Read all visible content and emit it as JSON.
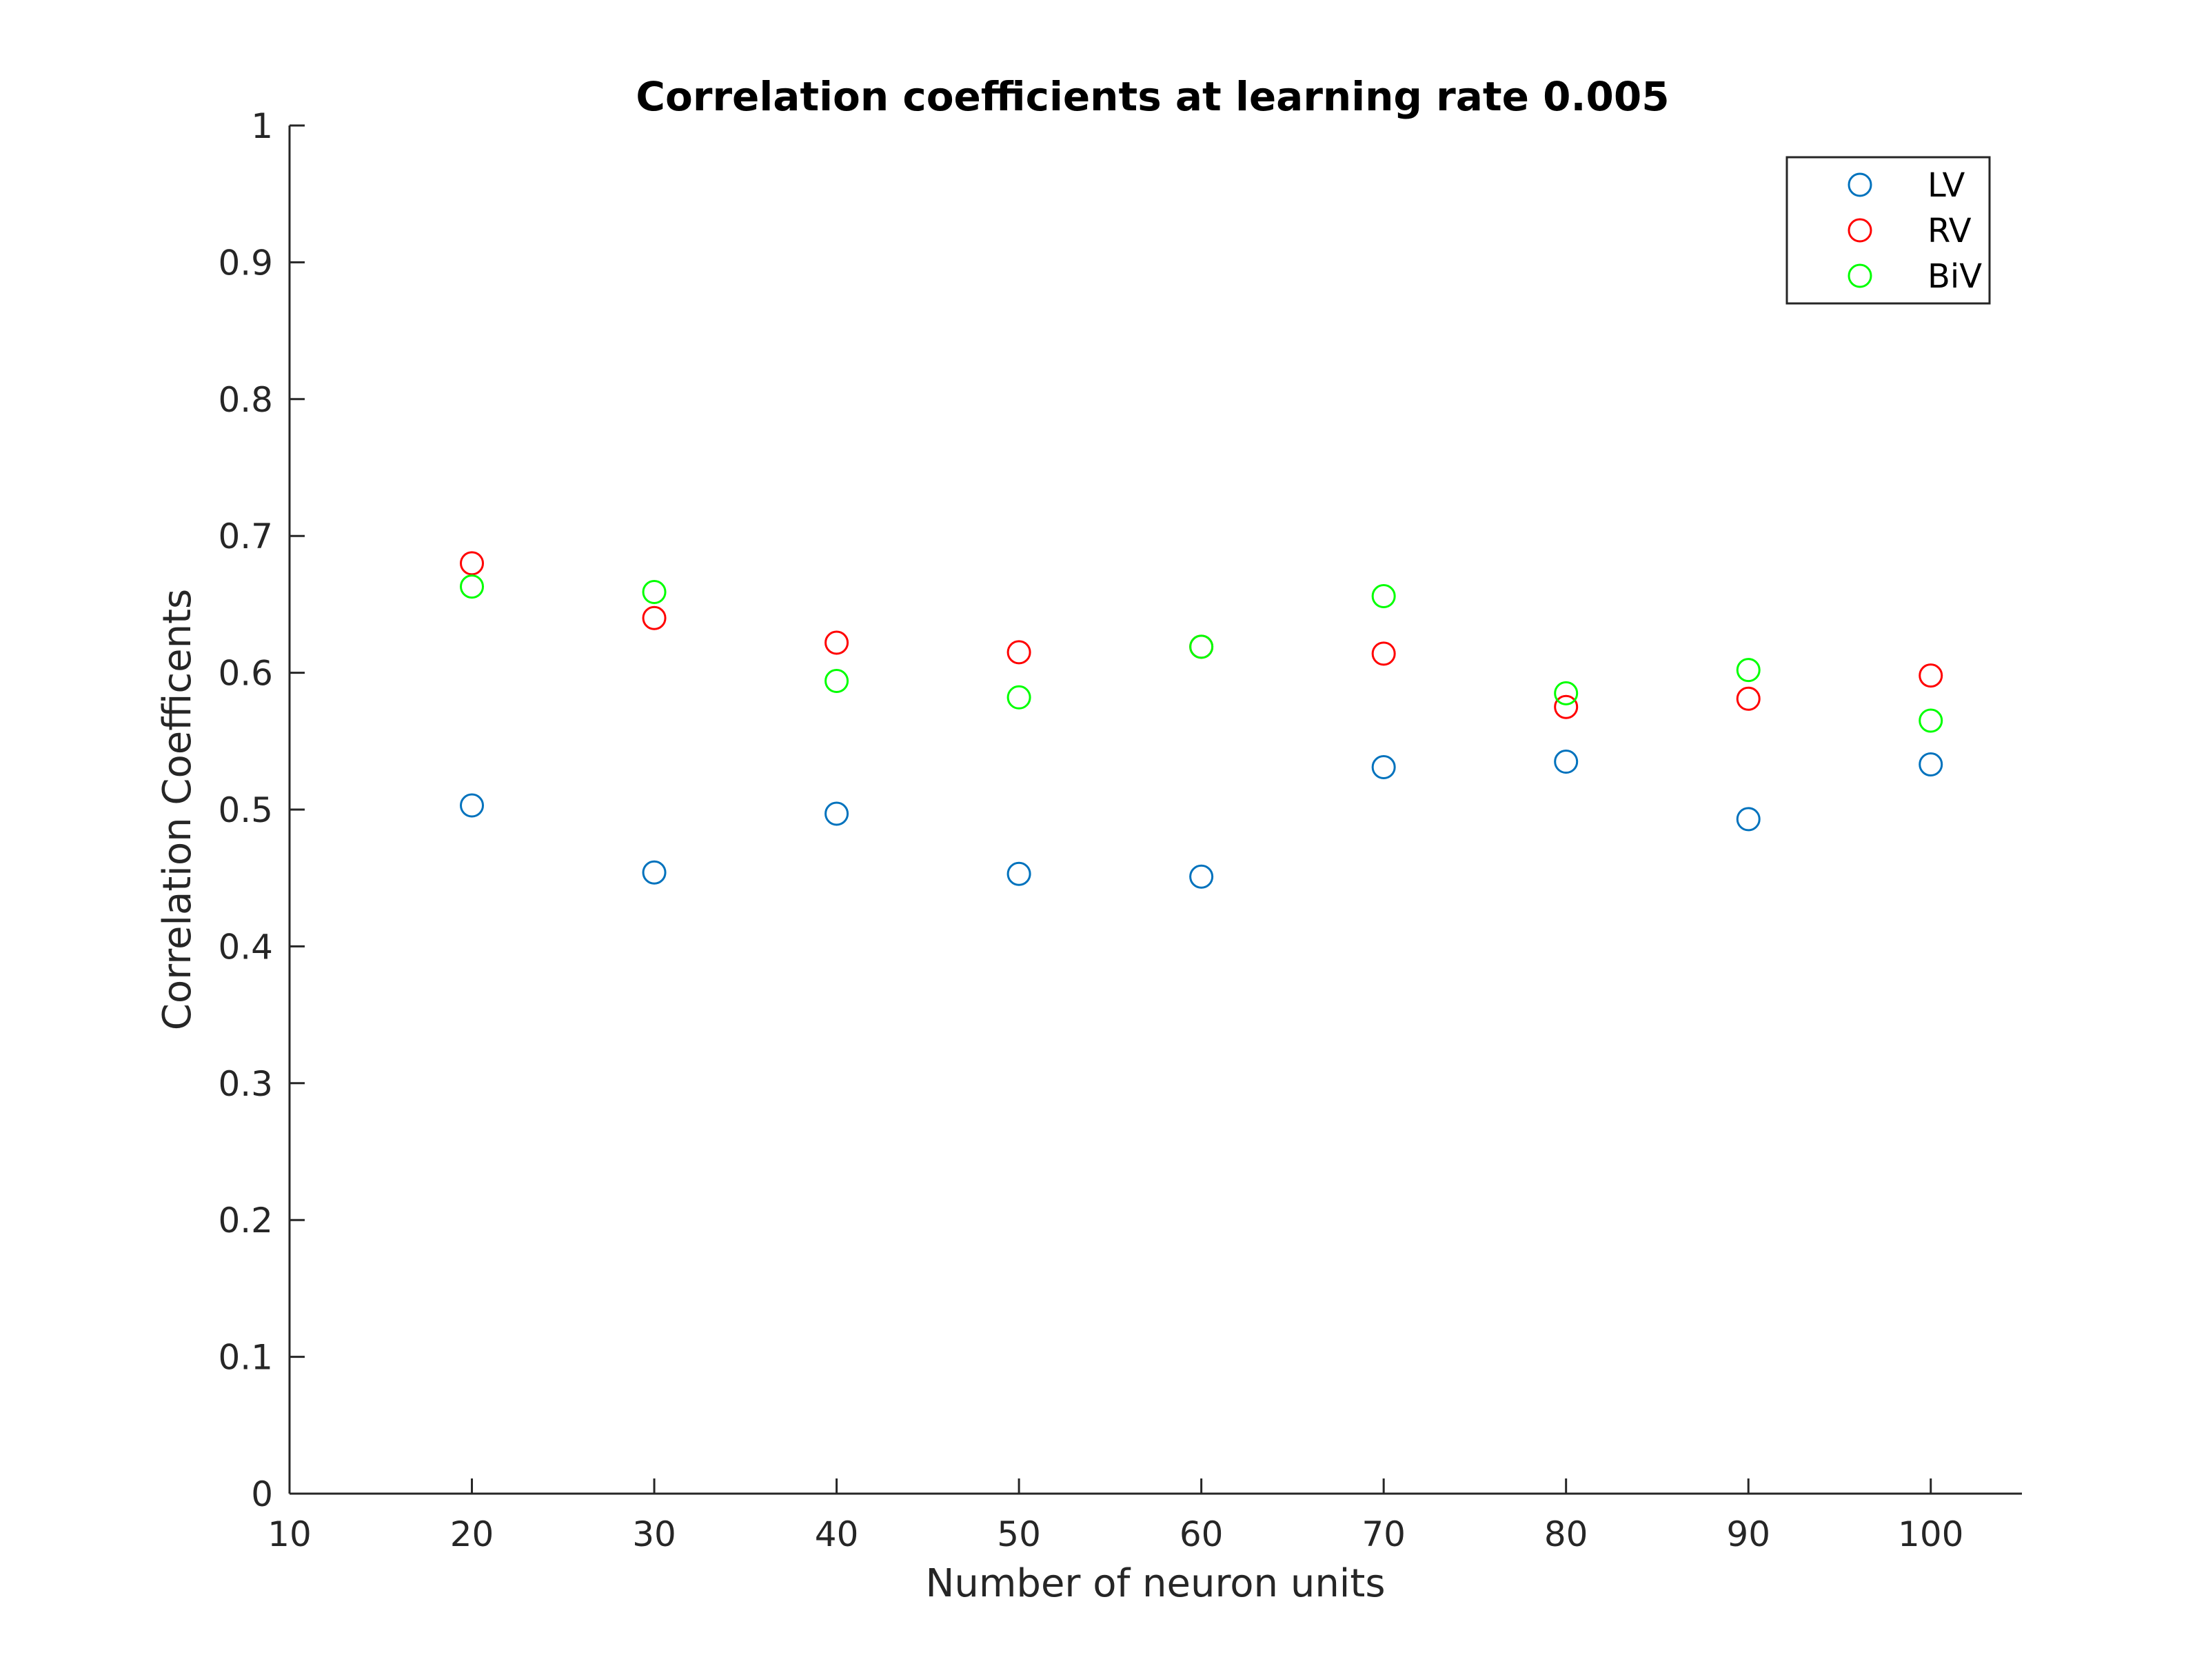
{
  "chart_data": {
    "type": "scatter",
    "title": "Correlation coefficients at learning rate 0.005",
    "xlabel": "Number of neuron units",
    "ylabel": "Correlation Coefficents",
    "xlim": [
      10,
      105
    ],
    "ylim": [
      0,
      1
    ],
    "xticks": [
      10,
      20,
      30,
      40,
      50,
      60,
      70,
      80,
      90,
      100
    ],
    "yticks": [
      0,
      0.1,
      0.2,
      0.3,
      0.4,
      0.5,
      0.6,
      0.7,
      0.8,
      0.9,
      1
    ],
    "xtick_labels": [
      "10",
      "20",
      "30",
      "40",
      "50",
      "60",
      "70",
      "80",
      "90",
      "100"
    ],
    "ytick_labels": [
      "0",
      "0.1",
      "0.2",
      "0.3",
      "0.4",
      "0.5",
      "0.6",
      "0.7",
      "0.8",
      "0.9",
      "1"
    ],
    "grid": false,
    "legend_position": "top-right",
    "marker": "open-circle",
    "x": [
      20,
      30,
      40,
      50,
      60,
      70,
      80,
      90,
      100
    ],
    "series": [
      {
        "name": "LV",
        "color": "#0072BD",
        "values": [
          0.503,
          0.454,
          0.497,
          0.453,
          0.451,
          0.531,
          0.535,
          0.493,
          0.533
        ]
      },
      {
        "name": "RV",
        "color": "#FF0000",
        "values": [
          0.68,
          0.64,
          0.622,
          0.615,
          0.619,
          0.614,
          0.575,
          0.581,
          0.598
        ]
      },
      {
        "name": "BiV",
        "color": "#00FF00",
        "values": [
          0.663,
          0.659,
          0.594,
          0.582,
          0.619,
          0.656,
          0.585,
          0.602,
          0.565
        ]
      }
    ]
  }
}
